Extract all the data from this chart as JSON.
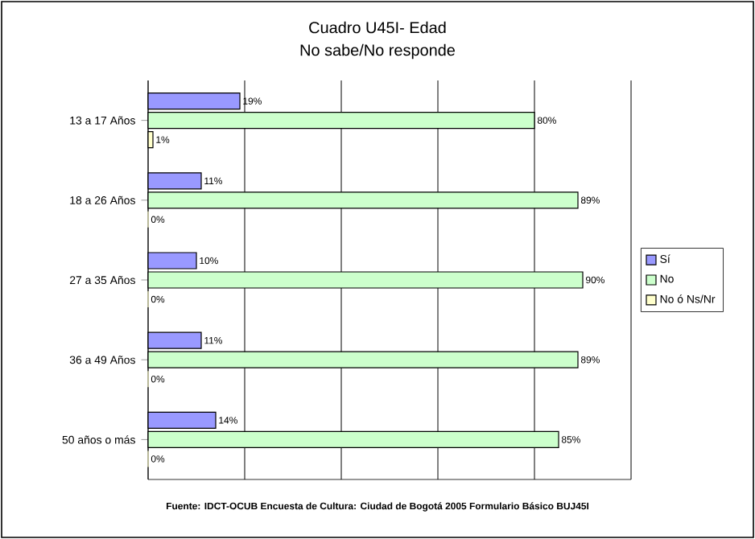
{
  "chart_data": {
    "type": "bar",
    "orientation": "horizontal",
    "title": "Cuadro U45I- Edad",
    "subtitle": "No sabe/No responde",
    "categories": [
      "13 a 17 Años",
      "18 a 26 Años",
      "27 a 35 Años",
      "36 a 49 Años",
      "50 años o más"
    ],
    "series": [
      {
        "name": "Sí",
        "color": "#9999ff",
        "values": [
          19,
          11,
          10,
          11,
          14
        ],
        "value_labels": [
          "19%",
          "11%",
          "10%",
          "11%",
          "14%"
        ]
      },
      {
        "name": "No",
        "color": "#ccffcc",
        "values": [
          80,
          89,
          90,
          89,
          85
        ],
        "value_labels": [
          "80%",
          "89%",
          "90%",
          "89%",
          "85%"
        ]
      },
      {
        "name": "No ó Ns/Nr",
        "color": "#ffffcc",
        "values": [
          1,
          0,
          0,
          0,
          0
        ],
        "value_labels": [
          "1%",
          "0%",
          "0%",
          "0%",
          "0%"
        ]
      }
    ],
    "xlim": [
      0,
      100
    ],
    "xticks": [
      {
        "value": 0,
        "label": null
      },
      {
        "value": 20,
        "label": null
      },
      {
        "value": 40,
        "label": null
      },
      {
        "value": 60,
        "label": null
      },
      {
        "value": 80,
        "label": null
      },
      {
        "value": 100,
        "label": null
      }
    ],
    "grid": "x",
    "legend": "right",
    "tick_labels": "y",
    "annotations": [
      "Fuente: IDCT-OCUB Encuesta de Cultura: Ciudad de Bogotá 2005 Formulario Básico BUJ45I"
    ]
  }
}
